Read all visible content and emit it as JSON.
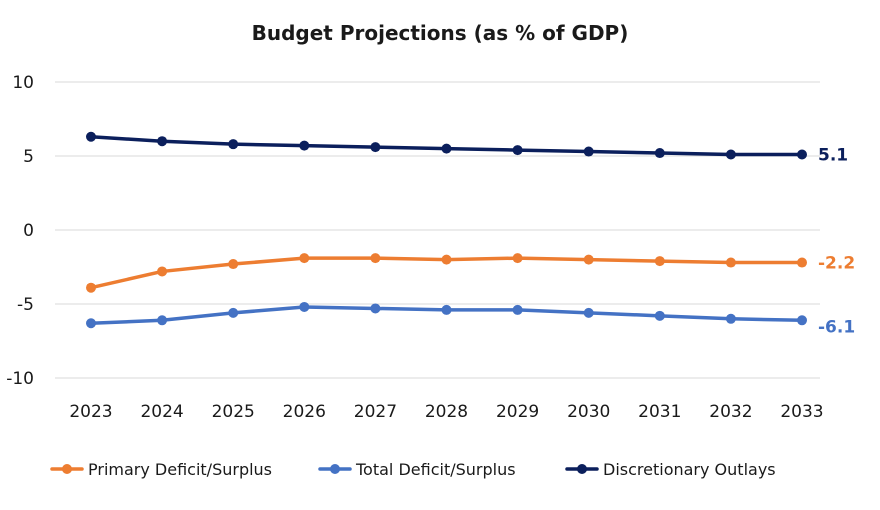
{
  "chart_data": {
    "type": "line",
    "title": "Budget Projections (as % of GDP)",
    "xlabel": "",
    "ylabel": "",
    "categories": [
      "2023",
      "2024",
      "2025",
      "2026",
      "2027",
      "2028",
      "2029",
      "2030",
      "2031",
      "2032",
      "2033"
    ],
    "ylim": [
      -10,
      10
    ],
    "yticks": [
      10,
      5,
      0,
      -5,
      -10
    ],
    "grid": true,
    "legend_position": "bottom",
    "series": [
      {
        "name": "Primary Deficit/Surplus",
        "color": "#ed7d31",
        "values": [
          -3.9,
          -2.8,
          -2.3,
          -1.9,
          -1.9,
          -2.0,
          -1.9,
          -2.0,
          -2.1,
          -2.2,
          -2.2
        ],
        "end_label": "-2.2"
      },
      {
        "name": "Total Deficit/Surplus",
        "color": "#4472c4",
        "values": [
          -6.3,
          -6.1,
          -5.6,
          -5.2,
          -5.3,
          -5.4,
          -5.4,
          -5.6,
          -5.8,
          -6.0,
          -6.1
        ],
        "end_label": "-6.1"
      },
      {
        "name": "Discretionary Outlays",
        "color": "#0b1f5c",
        "values": [
          6.3,
          6.0,
          5.8,
          5.7,
          5.6,
          5.5,
          5.4,
          5.3,
          5.2,
          5.1,
          5.1
        ],
        "end_label": "5.1"
      }
    ]
  }
}
